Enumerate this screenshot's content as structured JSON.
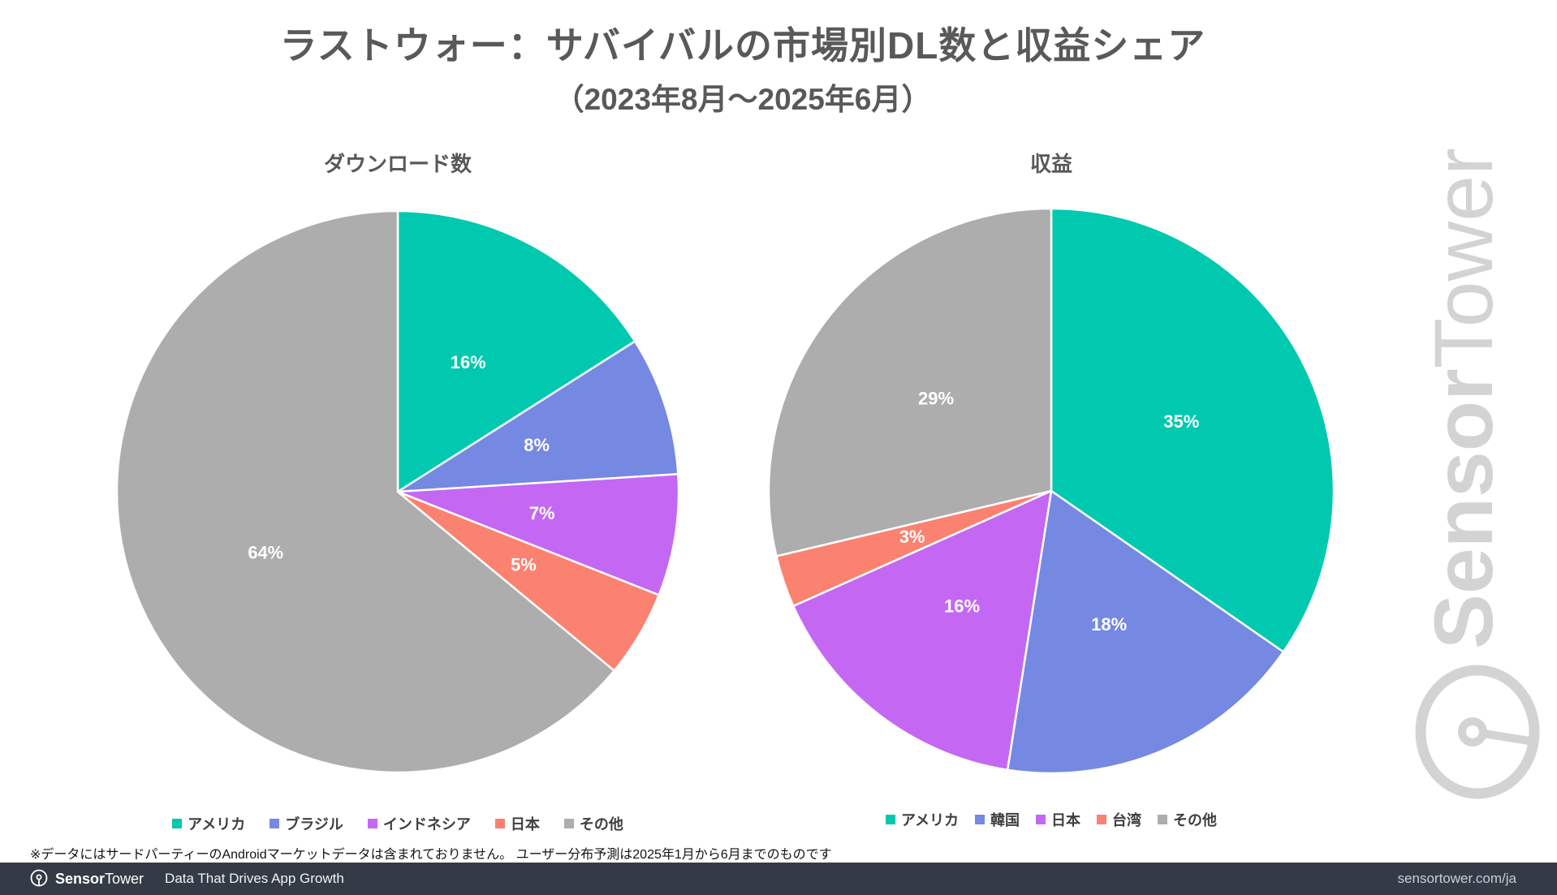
{
  "header": {
    "title": "ラストウォー：サバイバルの市場別DL数と収益シェア",
    "subtitle": "（2023年8月～2025年6月）"
  },
  "chart_data": [
    {
      "type": "pie",
      "title": "ダウンロード数",
      "categories": [
        "アメリカ",
        "ブラジル",
        "インドネシア",
        "日本",
        "その他"
      ],
      "values": [
        16,
        8,
        7,
        5,
        64
      ],
      "colors": [
        "#00c9b0",
        "#7589e2",
        "#c468f4",
        "#fb8270",
        "#adadad"
      ],
      "data_labels": [
        "16%",
        "8%",
        "7%",
        "5%",
        "64%"
      ],
      "start_angle_deg": 0,
      "direction": "clockwise",
      "legend_position": "bottom"
    },
    {
      "type": "pie",
      "title": "収益",
      "categories": [
        "アメリカ",
        "韓国",
        "日本",
        "台湾",
        "その他"
      ],
      "values": [
        35,
        18,
        16,
        3,
        29
      ],
      "colors": [
        "#00c9b0",
        "#7589e2",
        "#c468f4",
        "#fb8270",
        "#adadad"
      ],
      "data_labels": [
        "35%",
        "18%",
        "16%",
        "3%",
        "29%"
      ],
      "start_angle_deg": 0,
      "direction": "clockwise",
      "legend_position": "bottom"
    }
  ],
  "styles": {
    "slice_border_color": "#ffffff",
    "label_color": "#ffffff",
    "watermark_color": "#d3d3d3",
    "footer_background": "#343b46",
    "accent_teal": "#00c9b0"
  },
  "footnote": {
    "text": "※データにはサードパーティーのAndroidマーケットデータは含まれておりません。 ユーザー分布予測は2025年1月から6月までのものです"
  },
  "watermark": {
    "brand_bold": "Sensor",
    "brand_light": "Tower"
  },
  "footer": {
    "brand_bold": "Sensor",
    "brand_light": "Tower",
    "tagline": "Data That Drives App Growth",
    "url": "sensortower.com/ja"
  }
}
